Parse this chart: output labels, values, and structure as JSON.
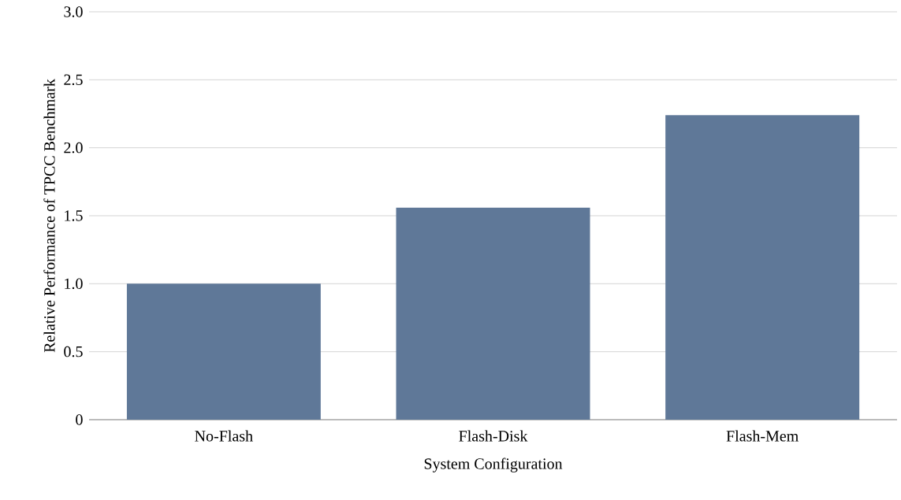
{
  "chart_data": {
    "type": "bar",
    "xlabel": "System Configuration",
    "ylabel": "Relative Performance of TPCC Benchmark",
    "categories": [
      "No-Flash",
      "Flash-Disk",
      "Flash-Mem"
    ],
    "values": [
      1.0,
      1.56,
      2.24
    ],
    "color": "#5f7898",
    "ylim": [
      0,
      3.0
    ],
    "yticks": [
      0,
      {
        "value": 0.5,
        "label": "0.5"
      },
      {
        "value": 1.0,
        "label": "1.0"
      },
      {
        "value": 1.5,
        "label": "1.5"
      },
      {
        "value": 2.0,
        "label": "2.0"
      },
      {
        "value": 2.5,
        "label": "2.5"
      },
      {
        "value": 3.0,
        "label": "3.0"
      }
    ],
    "grid": "y"
  }
}
